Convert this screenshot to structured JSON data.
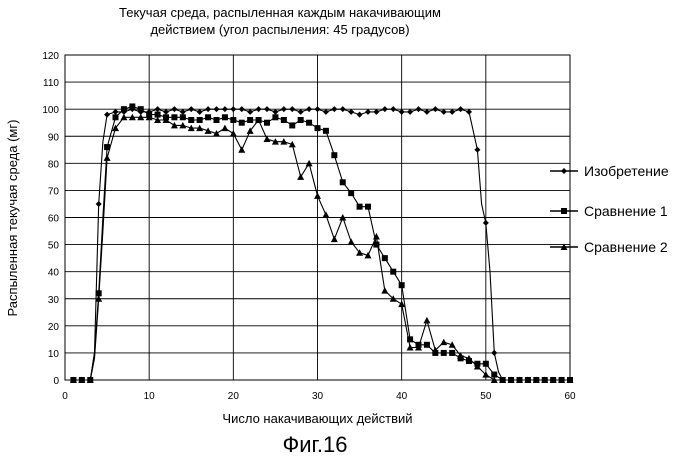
{
  "figure_label": "Фиг.16",
  "chart_data": {
    "type": "line",
    "title_lines": [
      "Текучая среда, распыленная каждым накачивающим",
      "действием (угол распыления: 45 градусов)"
    ],
    "xlabel": "Число накачивающих действий",
    "ylabel": "Распыленная текучая среда (мг)",
    "xlim": [
      0,
      60
    ],
    "ylim": [
      0,
      120
    ],
    "x_ticks": [
      0,
      10,
      20,
      30,
      40,
      50,
      60
    ],
    "y_ticks": [
      0,
      10,
      20,
      30,
      40,
      50,
      60,
      70,
      80,
      90,
      100,
      110,
      120
    ],
    "grid": "horizontal and vertical",
    "legend_position": "right",
    "series": [
      {
        "name": "Изобретение",
        "marker": "diamond",
        "points": [
          [
            1,
            0
          ],
          [
            2,
            0
          ],
          [
            3,
            0
          ],
          [
            3.5,
            10
          ],
          [
            4,
            65
          ],
          [
            4.5,
            88
          ],
          [
            5,
            98
          ],
          [
            6,
            99
          ],
          [
            7,
            99
          ],
          [
            8,
            100
          ],
          [
            9,
            99
          ],
          [
            10,
            99
          ],
          [
            11,
            100
          ],
          [
            12,
            99
          ],
          [
            13,
            100
          ],
          [
            14,
            99
          ],
          [
            15,
            100
          ],
          [
            16,
            99
          ],
          [
            17,
            100
          ],
          [
            18,
            100
          ],
          [
            19,
            100
          ],
          [
            20,
            100
          ],
          [
            21,
            100
          ],
          [
            22,
            99
          ],
          [
            23,
            100
          ],
          [
            24,
            100
          ],
          [
            25,
            99
          ],
          [
            26,
            100
          ],
          [
            27,
            100
          ],
          [
            28,
            99
          ],
          [
            29,
            100
          ],
          [
            30,
            100
          ],
          [
            31,
            99
          ],
          [
            32,
            100
          ],
          [
            33,
            100
          ],
          [
            34,
            99
          ],
          [
            35,
            98
          ],
          [
            36,
            99
          ],
          [
            37,
            99
          ],
          [
            38,
            100
          ],
          [
            39,
            100
          ],
          [
            40,
            99
          ],
          [
            41,
            99
          ],
          [
            42,
            100
          ],
          [
            43,
            99
          ],
          [
            44,
            100
          ],
          [
            45,
            99
          ],
          [
            46,
            99
          ],
          [
            47,
            100
          ],
          [
            48,
            99
          ],
          [
            49,
            85
          ],
          [
            49.5,
            65
          ],
          [
            50,
            58
          ],
          [
            50.5,
            40
          ],
          [
            51,
            10
          ],
          [
            51.5,
            3
          ],
          [
            52,
            0
          ],
          [
            53,
            0
          ],
          [
            54,
            0
          ],
          [
            55,
            0
          ],
          [
            56,
            0
          ],
          [
            57,
            0
          ],
          [
            58,
            0
          ],
          [
            59,
            0
          ],
          [
            60,
            0
          ]
        ]
      },
      {
        "name": "Сравнение 1",
        "marker": "square",
        "points": [
          [
            1,
            0
          ],
          [
            2,
            0
          ],
          [
            3,
            0
          ],
          [
            3.5,
            10
          ],
          [
            4,
            32
          ],
          [
            4.5,
            60
          ],
          [
            5,
            86
          ],
          [
            6,
            97
          ],
          [
            7,
            100
          ],
          [
            8,
            101
          ],
          [
            9,
            100
          ],
          [
            10,
            98
          ],
          [
            11,
            98
          ],
          [
            12,
            97
          ],
          [
            13,
            97
          ],
          [
            14,
            97
          ],
          [
            15,
            96
          ],
          [
            16,
            96
          ],
          [
            17,
            97
          ],
          [
            18,
            96
          ],
          [
            19,
            97
          ],
          [
            20,
            96
          ],
          [
            21,
            95
          ],
          [
            22,
            96
          ],
          [
            23,
            96
          ],
          [
            24,
            95
          ],
          [
            25,
            97
          ],
          [
            26,
            96
          ],
          [
            27,
            94
          ],
          [
            28,
            96
          ],
          [
            29,
            95
          ],
          [
            30,
            93
          ],
          [
            31,
            92
          ],
          [
            32,
            83
          ],
          [
            33,
            73
          ],
          [
            34,
            69
          ],
          [
            35,
            64
          ],
          [
            36,
            64
          ],
          [
            37,
            50
          ],
          [
            38,
            45
          ],
          [
            39,
            40
          ],
          [
            40,
            35
          ],
          [
            41,
            15
          ],
          [
            42,
            13
          ],
          [
            43,
            13
          ],
          [
            44,
            10
          ],
          [
            45,
            10
          ],
          [
            46,
            10
          ],
          [
            47,
            8
          ],
          [
            48,
            7
          ],
          [
            49,
            6
          ],
          [
            50,
            6
          ],
          [
            51,
            2
          ],
          [
            52,
            0
          ],
          [
            53,
            0
          ],
          [
            54,
            0
          ],
          [
            55,
            0
          ],
          [
            56,
            0
          ],
          [
            57,
            0
          ],
          [
            58,
            0
          ],
          [
            59,
            0
          ],
          [
            60,
            0
          ]
        ]
      },
      {
        "name": "Сравнение 2",
        "marker": "triangle",
        "points": [
          [
            1,
            0
          ],
          [
            2,
            0
          ],
          [
            3,
            0
          ],
          [
            3.5,
            8
          ],
          [
            4,
            30
          ],
          [
            4.5,
            55
          ],
          [
            5,
            82
          ],
          [
            6,
            93
          ],
          [
            7,
            97
          ],
          [
            8,
            97
          ],
          [
            9,
            97
          ],
          [
            10,
            97
          ],
          [
            11,
            96
          ],
          [
            12,
            96
          ],
          [
            13,
            94
          ],
          [
            14,
            94
          ],
          [
            15,
            93
          ],
          [
            16,
            93
          ],
          [
            17,
            92
          ],
          [
            18,
            91
          ],
          [
            19,
            93
          ],
          [
            20,
            91
          ],
          [
            21,
            85
          ],
          [
            22,
            92
          ],
          [
            23,
            96
          ],
          [
            24,
            89
          ],
          [
            25,
            88
          ],
          [
            26,
            88
          ],
          [
            27,
            87
          ],
          [
            28,
            75
          ],
          [
            29,
            80
          ],
          [
            30,
            68
          ],
          [
            31,
            61
          ],
          [
            32,
            52
          ],
          [
            33,
            60
          ],
          [
            34,
            51
          ],
          [
            35,
            47
          ],
          [
            36,
            46
          ],
          [
            37,
            53
          ],
          [
            38,
            33
          ],
          [
            39,
            30
          ],
          [
            40,
            28
          ],
          [
            41,
            12
          ],
          [
            42,
            12
          ],
          [
            43,
            22
          ],
          [
            44,
            11
          ],
          [
            45,
            14
          ],
          [
            46,
            13
          ],
          [
            47,
            9
          ],
          [
            48,
            8
          ],
          [
            49,
            5
          ],
          [
            50,
            2
          ],
          [
            51,
            0
          ],
          [
            52,
            0
          ],
          [
            53,
            0
          ],
          [
            54,
            0
          ],
          [
            55,
            0
          ],
          [
            56,
            0
          ],
          [
            57,
            0
          ],
          [
            58,
            0
          ],
          [
            59,
            0
          ],
          [
            60,
            0
          ]
        ]
      }
    ]
  }
}
